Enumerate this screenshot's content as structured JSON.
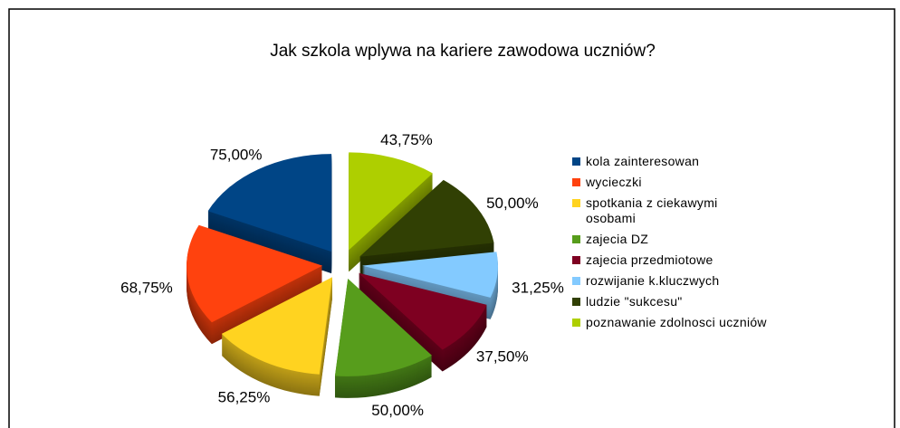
{
  "chart_data": {
    "type": "pie",
    "title": "Jak szkola wplywa na kariere zawodowa uczniów?",
    "categories": [
      "kola zainteresowan",
      "wycieczki",
      "spotkania z ciekawymi osobami",
      "zajecia DZ",
      "zajecia przedmiotowe",
      "rozwijanie k.kluczwych",
      "ludzie \"sukcesu\"",
      "poznawanie zdolnosci uczniów"
    ],
    "values": [
      75,
      68.75,
      56.25,
      50,
      37.5,
      31.25,
      50,
      43.75
    ],
    "value_labels": [
      "75,00%",
      "68,75%",
      "56,25%",
      "50,00%",
      "37,50%",
      "31,25%",
      "50,00%",
      "43,75%"
    ],
    "colors": [
      "#004586",
      "#ff420e",
      "#ffd320",
      "#579d1c",
      "#7e0021",
      "#83caff",
      "#314004",
      "#aecf00"
    ],
    "legend": "right"
  }
}
